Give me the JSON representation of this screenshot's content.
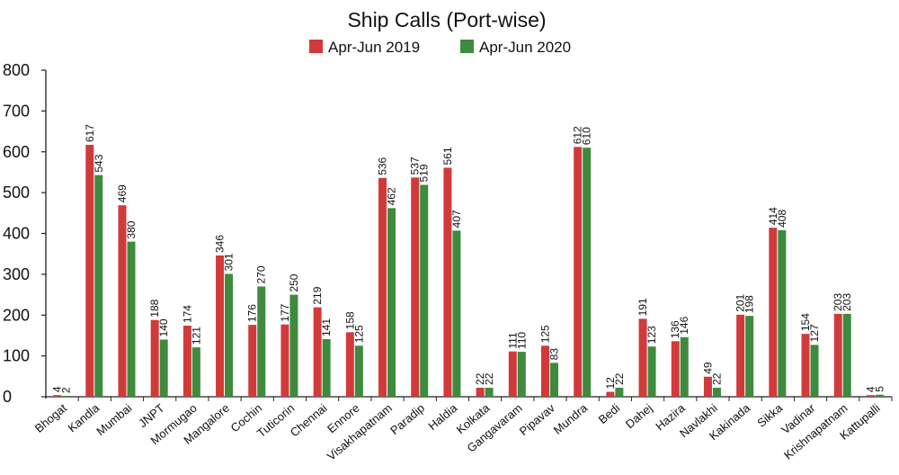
{
  "chart_data": {
    "type": "bar",
    "title": "Ship Calls (Port-wise)",
    "xlabel": "",
    "ylabel": "",
    "ylim": [
      0,
      800
    ],
    "yticks": [
      0,
      100,
      200,
      300,
      400,
      500,
      600,
      700,
      800
    ],
    "grid": false,
    "legend_position": "top-center",
    "categories": [
      "Bhogat",
      "Kandla",
      "Mumbai",
      "JNPT",
      "Mormugao",
      "Mangalore",
      "Cochin",
      "Tuticorin",
      "Chennai",
      "Ennore",
      "Visakhapatnam",
      "Paradip",
      "Haldia",
      "Kolkata",
      "Gangavaram",
      "Pipavav",
      "Mundra",
      "Bedi",
      "Dahej",
      "Hazira",
      "Navlakhi",
      "Kakinada",
      "Sikka",
      "Vadinar",
      "Krishnapatnam",
      "Kattupalli"
    ],
    "series": [
      {
        "name": "Apr-Jun 2019",
        "color": "#d13a3a",
        "values": [
          4,
          617,
          469,
          188,
          174,
          346,
          176,
          177,
          219,
          158,
          536,
          537,
          561,
          22,
          111,
          125,
          612,
          12,
          191,
          136,
          49,
          201,
          414,
          154,
          203,
          4
        ]
      },
      {
        "name": "Apr-Jun 2020",
        "color": "#3e8a3e",
        "values": [
          2,
          543,
          380,
          140,
          121,
          301,
          270,
          250,
          141,
          125,
          462,
          519,
          407,
          22,
          110,
          83,
          610,
          22,
          123,
          146,
          22,
          198,
          408,
          127,
          203,
          5
        ]
      }
    ]
  }
}
